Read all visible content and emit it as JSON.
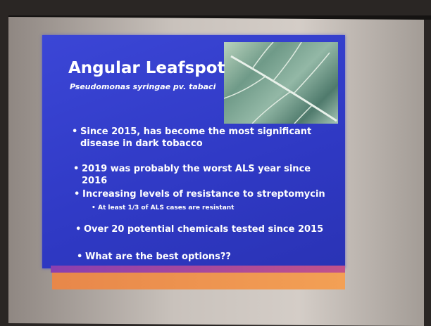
{
  "slide": {
    "title": "Angular Leafspot",
    "subtitle": "Pseudomonas syringae pv. tabaci",
    "bullets": [
      {
        "text": "Since 2015, has become the most significant disease in dark tobacco"
      },
      {
        "text": "2019 was probably the worst ALS year since 2016"
      },
      {
        "text": "Increasing levels of resistance to streptomycin",
        "sub": [
          "At least 1/3 of ALS cases are resistant"
        ]
      },
      {
        "text": "Over 20 potential chemicals tested since 2015"
      },
      {
        "text": "What are the best options??"
      }
    ]
  }
}
